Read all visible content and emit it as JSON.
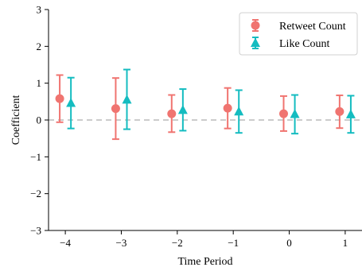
{
  "chart_data": {
    "type": "scatter",
    "xlabel": "Time Period",
    "ylabel": "Coefficient",
    "xlim": [
      -4.3,
      1.3
    ],
    "ylim": [
      -3,
      3
    ],
    "xticks": [
      -4,
      -3,
      -2,
      -1,
      0,
      1
    ],
    "xtick_labels": [
      "−4",
      "−3",
      "−2",
      "−1",
      "0",
      "1"
    ],
    "yticks": [
      -3,
      -2,
      -1,
      0,
      1,
      2,
      3
    ],
    "ytick_labels": [
      "−3",
      "−2",
      "−1",
      "0",
      "1",
      "2",
      "3"
    ],
    "reference_line": {
      "y": 0,
      "style": "dashed",
      "color": "#cccccc"
    },
    "legend_position": "top-right",
    "series": [
      {
        "name": "Retweet Count",
        "marker": "circle",
        "color": "#f07470",
        "offset": -0.1,
        "points": [
          {
            "x": -4,
            "y": 0.58,
            "lower": -0.06,
            "upper": 1.22
          },
          {
            "x": -3,
            "y": 0.31,
            "lower": -0.52,
            "upper": 1.14
          },
          {
            "x": -2,
            "y": 0.17,
            "lower": -0.33,
            "upper": 0.68
          },
          {
            "x": -1,
            "y": 0.32,
            "lower": -0.23,
            "upper": 0.87
          },
          {
            "x": 0,
            "y": 0.17,
            "lower": -0.3,
            "upper": 0.65
          },
          {
            "x": 1,
            "y": 0.23,
            "lower": -0.22,
            "upper": 0.67
          }
        ]
      },
      {
        "name": "Like Count",
        "marker": "triangle",
        "color": "#14bcc0",
        "offset": 0.1,
        "points": [
          {
            "x": -4,
            "y": 0.46,
            "lower": -0.23,
            "upper": 1.15
          },
          {
            "x": -3,
            "y": 0.55,
            "lower": -0.25,
            "upper": 1.37
          },
          {
            "x": -2,
            "y": 0.27,
            "lower": -0.29,
            "upper": 0.84
          },
          {
            "x": -1,
            "y": 0.23,
            "lower": -0.35,
            "upper": 0.81
          },
          {
            "x": 0,
            "y": 0.16,
            "lower": -0.37,
            "upper": 0.68
          },
          {
            "x": 1,
            "y": 0.15,
            "lower": -0.35,
            "upper": 0.66
          }
        ]
      }
    ]
  }
}
